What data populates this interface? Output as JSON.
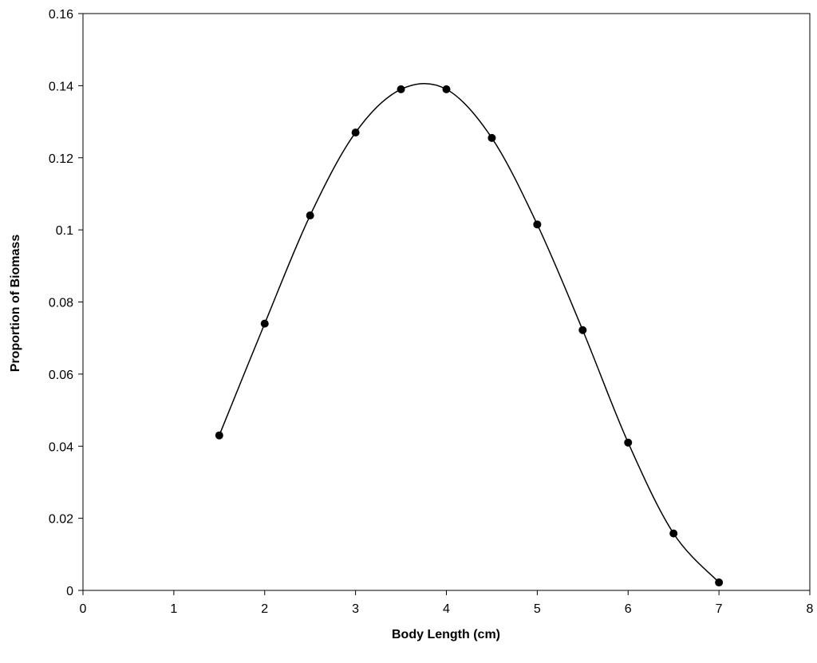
{
  "chart_data": {
    "type": "line",
    "title": "",
    "xlabel": "Body Length (cm)",
    "ylabel": "Proportion of Biomass",
    "xlim": [
      0,
      8
    ],
    "ylim": [
      0,
      0.16
    ],
    "xticks": [
      "0",
      "1",
      "2",
      "3",
      "4",
      "5",
      "6",
      "7",
      "8"
    ],
    "yticks": [
      "0",
      "0.02",
      "0.04",
      "0.06",
      "0.08",
      "0.1",
      "0.12",
      "0.14",
      "0.16"
    ],
    "grid": false,
    "legend": "none",
    "smooth": true,
    "marker": "circle",
    "line_color": "#000000",
    "marker_color": "#000000",
    "series": [
      {
        "x": [
          1.5,
          2.0,
          2.5,
          3.0,
          3.5,
          4.0,
          4.5,
          5.0,
          5.5,
          6.0,
          6.5,
          7.0
        ],
        "values": [
          0.043,
          0.074,
          0.104,
          0.127,
          0.139,
          0.139,
          0.1255,
          0.1015,
          0.0722,
          0.041,
          0.0158,
          0.0022
        ]
      }
    ]
  }
}
